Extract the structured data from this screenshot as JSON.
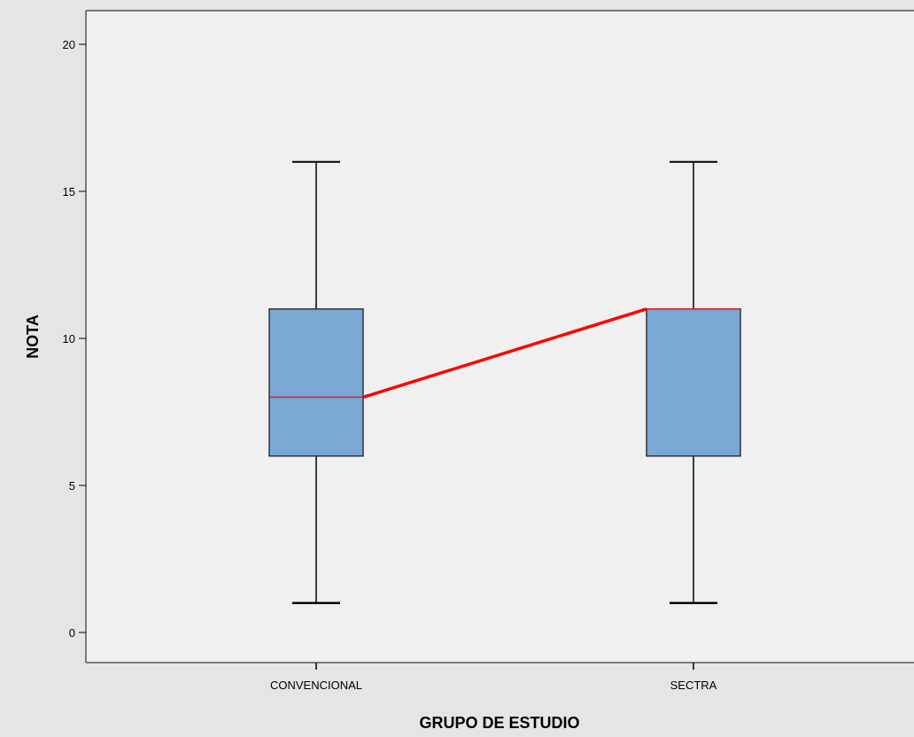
{
  "chart_data": {
    "type": "box",
    "xlabel": "GRUPO DE ESTUDIO",
    "ylabel": "NOTA",
    "ylim": [
      -1,
      21
    ],
    "yticks": [
      0,
      5,
      10,
      15,
      20
    ],
    "categories": [
      "CONVENCIONAL",
      "SECTRA"
    ],
    "boxes": [
      {
        "category": "CONVENCIONAL",
        "min": 1,
        "q1": 6,
        "median": 8,
        "q3": 11,
        "max": 16
      },
      {
        "category": "SECTRA",
        "min": 1,
        "q1": 6,
        "median": 11,
        "q3": 11,
        "max": 16
      }
    ],
    "median_connector": true,
    "grid": false,
    "colors": {
      "box_fill": "#7ba7d4",
      "median": "#e0201c",
      "connector": "#ff0000",
      "plot_bg": "#f0f0f0",
      "outer_bg": "#e5e5e5"
    }
  }
}
